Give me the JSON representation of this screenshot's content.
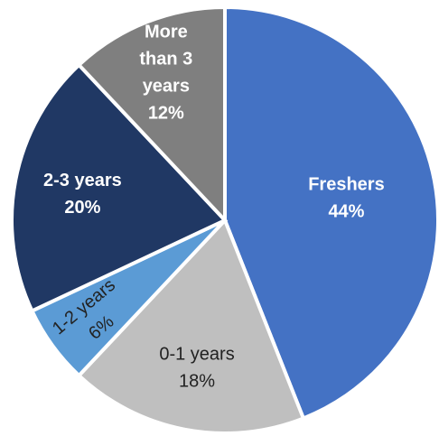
{
  "chart_data": {
    "type": "pie",
    "slices": [
      {
        "label": "Freshers",
        "value": 44,
        "value_label": "44%",
        "color": "#4472c4",
        "label_color": "#ffffff"
      },
      {
        "label": "0-1 years",
        "value": 18,
        "value_label": "18%",
        "color": "#bfbfbf",
        "label_color": "#222222"
      },
      {
        "label": "1-2 years",
        "value": 6,
        "value_label": "6%",
        "color": "#5b9bd5",
        "label_color": "#222222"
      },
      {
        "label": "2-3 years",
        "value": 20,
        "value_label": "20%",
        "color": "#203864",
        "label_color": "#ffffff"
      },
      {
        "label": "More than 3 years",
        "value": 12,
        "value_label": "12%",
        "color": "#7f7f7f",
        "label_color": "#ffffff"
      }
    ]
  }
}
